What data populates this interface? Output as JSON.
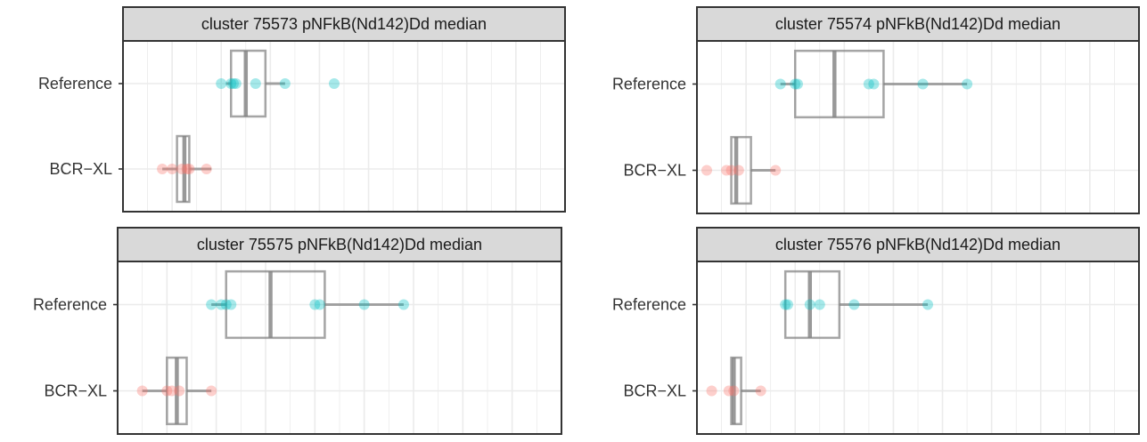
{
  "chart_data": [
    {
      "type": "box",
      "title": "cluster 75573 pNFkB(Nd142)Dd median",
      "categories": [
        "Reference",
        "BCR−XL"
      ],
      "xlim": [
        0,
        9
      ],
      "grid": true,
      "series": [
        {
          "category": "Reference",
          "color": "#00BFC4",
          "box": {
            "whisker_low": 2.1,
            "q1": 2.2,
            "median": 2.5,
            "q3": 2.9,
            "whisker_high": 3.3
          },
          "points": [
            2.0,
            2.2,
            2.25,
            2.3,
            2.7,
            3.3,
            4.3
          ]
        },
        {
          "category": "BCR−XL",
          "color": "#F8766D",
          "box": {
            "whisker_low": 0.8,
            "q1": 1.1,
            "median": 1.25,
            "q3": 1.35,
            "whisker_high": 1.8
          },
          "points": [
            0.8,
            1.0,
            1.2,
            1.3,
            1.35,
            1.7
          ]
        }
      ]
    },
    {
      "type": "box",
      "title": "cluster 75574 pNFkB(Nd142)Dd median",
      "categories": [
        "Reference",
        "BCR−XL"
      ],
      "xlim": [
        0,
        9
      ],
      "grid": true,
      "series": [
        {
          "category": "Reference",
          "color": "#00BFC4",
          "box": {
            "whisker_low": 1.7,
            "q1": 2.0,
            "median": 2.8,
            "q3": 3.8,
            "whisker_high": 5.5
          },
          "points": [
            1.7,
            2.0,
            2.05,
            3.5,
            3.6,
            4.6,
            5.5
          ]
        },
        {
          "category": "BCR−XL",
          "color": "#F8766D",
          "box": {
            "whisker_low": 0.7,
            "q1": 0.7,
            "median": 0.8,
            "q3": 1.1,
            "whisker_high": 1.6
          },
          "points": [
            0.2,
            0.6,
            0.7,
            0.85,
            1.6
          ]
        }
      ]
    },
    {
      "type": "box",
      "title": "cluster 75575 pNFkB(Nd142)Dd median",
      "categories": [
        "Reference",
        "BCR−XL"
      ],
      "xlim": [
        0,
        9
      ],
      "grid": true,
      "series": [
        {
          "category": "Reference",
          "color": "#00BFC4",
          "box": {
            "whisker_low": 1.9,
            "q1": 2.2,
            "median": 3.1,
            "q3": 4.2,
            "whisker_high": 5.8
          },
          "points": [
            1.9,
            2.1,
            2.2,
            2.3,
            4.0,
            4.1,
            5.0,
            5.8
          ]
        },
        {
          "category": "BCR−XL",
          "color": "#F8766D",
          "box": {
            "whisker_low": 0.5,
            "q1": 1.0,
            "median": 1.2,
            "q3": 1.4,
            "whisker_high": 1.9
          },
          "points": [
            0.5,
            1.0,
            1.1,
            1.25,
            1.9
          ]
        }
      ]
    },
    {
      "type": "box",
      "title": "cluster 75576 pNFkB(Nd142)Dd median",
      "categories": [
        "Reference",
        "BCR−XL"
      ],
      "xlim": [
        0,
        9
      ],
      "grid": true,
      "series": [
        {
          "category": "Reference",
          "color": "#00BFC4",
          "box": {
            "whisker_low": 1.8,
            "q1": 1.8,
            "median": 2.3,
            "q3": 2.9,
            "whisker_high": 4.7
          },
          "points": [
            1.8,
            1.85,
            2.3,
            2.5,
            3.2,
            4.7
          ]
        },
        {
          "category": "BCR−XL",
          "color": "#F8766D",
          "box": {
            "whisker_low": 0.7,
            "q1": 0.7,
            "median": 0.75,
            "q3": 0.9,
            "whisker_high": 1.3
          },
          "points": [
            0.3,
            0.65,
            0.75,
            1.3
          ]
        }
      ]
    }
  ]
}
